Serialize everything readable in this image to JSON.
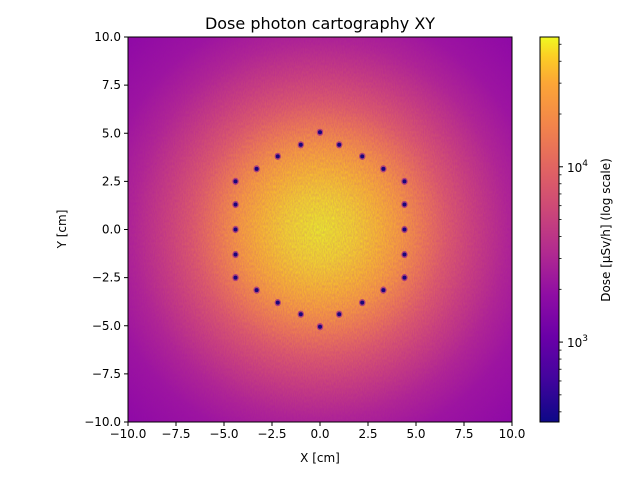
{
  "chart_data": {
    "type": "heatmap",
    "title": "Dose photon cartography XY",
    "xlabel": "X [cm]",
    "ylabel": "Y [cm]",
    "xlim": [
      -10,
      10
    ],
    "ylim": [
      -10,
      10
    ],
    "x_ticks": [
      "−10.0",
      "−7.5",
      "−5.0",
      "−2.5",
      "0.0",
      "2.5",
      "5.0",
      "7.5",
      "10.0"
    ],
    "y_ticks": [
      "10.0",
      "7.5",
      "5.0",
      "2.5",
      "0.0",
      "−2.5",
      "−5.0",
      "−7.5",
      "−10.0"
    ],
    "x_tick_values": [
      -10,
      -7.5,
      -5,
      -2.5,
      0,
      2.5,
      5,
      7.5,
      10
    ],
    "y_tick_values": [
      10,
      7.5,
      5,
      2.5,
      0,
      -2.5,
      -5,
      -7.5,
      -10
    ],
    "colormap": "plasma",
    "colorbar": {
      "label": "Dose [µSv/h] (log scale)",
      "scale": "log",
      "range": [
        350,
        55000
      ],
      "major_ticks": [
        {
          "value": 1000,
          "mantissa": "10",
          "exponent": "3"
        },
        {
          "value": 10000,
          "mantissa": "10",
          "exponent": "4"
        }
      ],
      "minor_ticks": [
        400,
        500,
        600,
        700,
        800,
        900,
        2000,
        3000,
        4000,
        5000,
        6000,
        7000,
        8000,
        9000,
        20000,
        30000,
        40000,
        50000
      ]
    },
    "field": {
      "center": [
        0,
        0
      ],
      "peak_dose": 52000,
      "edge_dose": 700,
      "core_radius": 3.8
    },
    "low_dose_spots": [
      {
        "x": 0.0,
        "y": 5.05
      },
      {
        "x": 1.0,
        "y": 4.4
      },
      {
        "x": 2.2,
        "y": 3.8
      },
      {
        "x": 3.3,
        "y": 3.15
      },
      {
        "x": 4.4,
        "y": 2.5
      },
      {
        "x": 4.4,
        "y": 1.3
      },
      {
        "x": 4.4,
        "y": 0.0
      },
      {
        "x": 4.4,
        "y": -1.3
      },
      {
        "x": 4.4,
        "y": -2.5
      },
      {
        "x": 3.3,
        "y": -3.15
      },
      {
        "x": 2.2,
        "y": -3.8
      },
      {
        "x": 1.0,
        "y": -4.4
      },
      {
        "x": 0.0,
        "y": -5.05
      },
      {
        "x": -1.0,
        "y": -4.4
      },
      {
        "x": -2.2,
        "y": -3.8
      },
      {
        "x": -3.3,
        "y": -3.15
      },
      {
        "x": -4.4,
        "y": -2.5
      },
      {
        "x": -4.4,
        "y": -1.3
      },
      {
        "x": -4.4,
        "y": 0.0
      },
      {
        "x": -4.4,
        "y": 1.3
      },
      {
        "x": -4.4,
        "y": 2.5
      },
      {
        "x": -3.3,
        "y": 3.15
      },
      {
        "x": -2.2,
        "y": 3.8
      },
      {
        "x": -1.0,
        "y": 4.4
      }
    ]
  }
}
